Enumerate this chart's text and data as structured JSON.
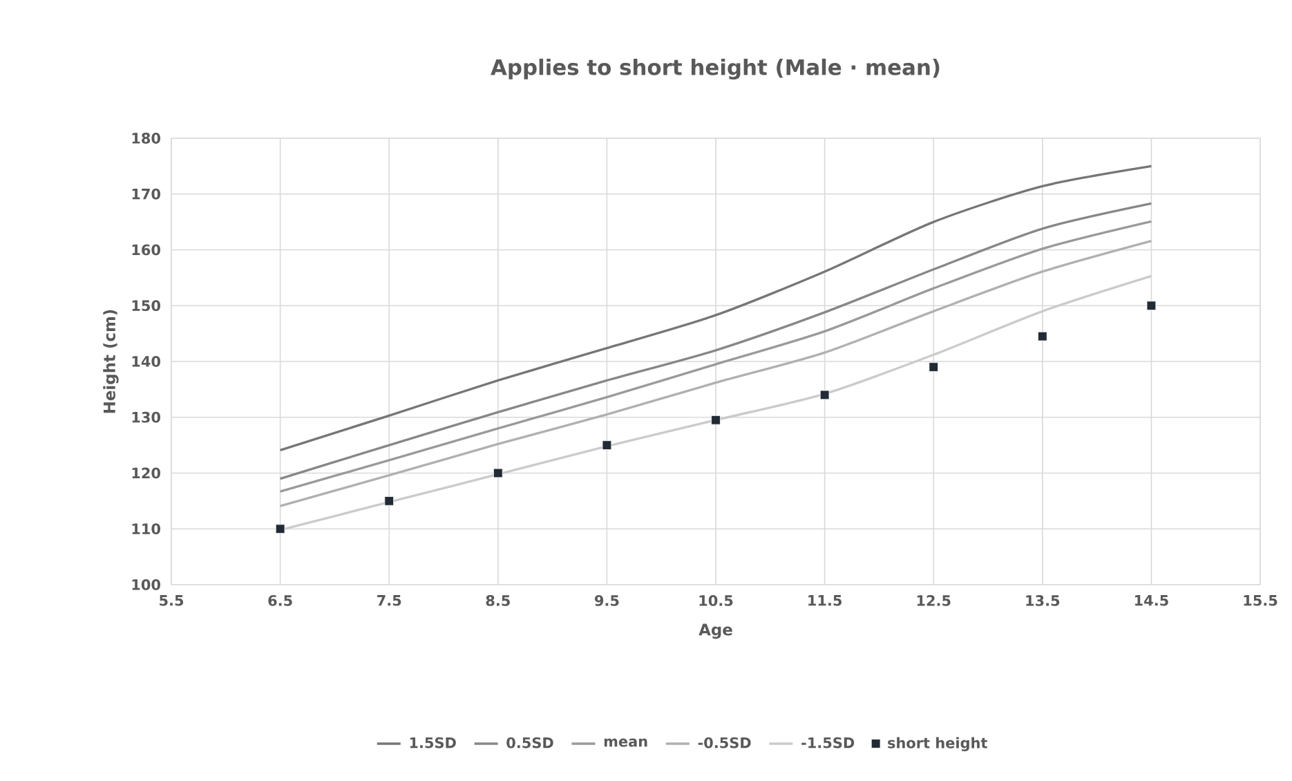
{
  "chart_data": {
    "type": "line",
    "title": "Applies to short height (Male · mean)",
    "xlabel": "Age",
    "ylabel": "Height (cm)",
    "x": [
      6.5,
      7.5,
      8.5,
      9.5,
      10.5,
      11.5,
      12.5,
      13.5,
      14.5
    ],
    "series": [
      {
        "name": "1.5SD",
        "color": "#767676",
        "marker": "none",
        "values": [
          124.1,
          130.3,
          136.6,
          142.4,
          148.3,
          156.1,
          165,
          171.4,
          175
        ]
      },
      {
        "name": "0.5SD",
        "color": "#878787",
        "marker": "none",
        "values": [
          119,
          125,
          130.9,
          136.6,
          142,
          148.8,
          156.5,
          163.8,
          168.3
        ]
      },
      {
        "name": "mean",
        "color": "#9a9a9a",
        "marker": "none",
        "values": [
          116.7,
          122.3,
          128,
          133.6,
          139.5,
          145.4,
          153.1,
          160.2,
          165.1
        ]
      },
      {
        "name": "-0.5SD",
        "color": "#b0b0b0",
        "marker": "none",
        "values": [
          114.1,
          119.6,
          125.2,
          130.5,
          136.2,
          141.6,
          149,
          156.1,
          161.6
        ]
      },
      {
        "name": "-1.5SD",
        "color": "#cbcbcb",
        "marker": "none",
        "values": [
          109.8,
          114.8,
          119.8,
          124.8,
          129.5,
          134.2,
          141.2,
          149,
          155.3
        ]
      },
      {
        "name": "short height",
        "type": "scatter",
        "color": "#222a35",
        "marker": "square",
        "values": [
          110,
          115,
          120,
          125,
          129.5,
          134,
          139,
          144.5,
          150
        ]
      }
    ],
    "xlim": [
      5.5,
      15.5
    ],
    "xticks": [
      5.5,
      6.5,
      7.5,
      8.5,
      9.5,
      10.5,
      11.5,
      12.5,
      13.5,
      14.5,
      15.5
    ],
    "ylim": [
      100,
      180
    ],
    "yticks": [
      100,
      110,
      120,
      130,
      140,
      150,
      160,
      170,
      180
    ],
    "grid": true,
    "legend": "bottom",
    "line_style": "solid"
  }
}
